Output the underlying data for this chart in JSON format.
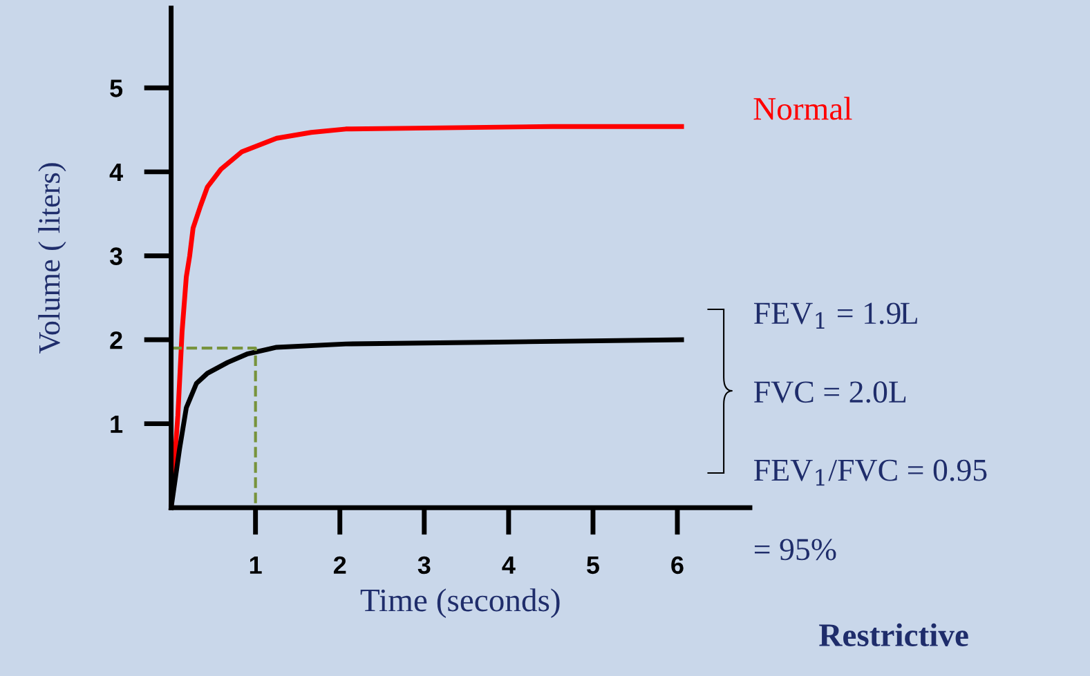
{
  "chart_data": {
    "type": "line",
    "title": "Restrictive",
    "xlabel": "Time (seconds)",
    "ylabel": "Volume ( liters)",
    "xlim": [
      0,
      6.86
    ],
    "ylim": [
      0,
      5.95
    ],
    "xticks": [
      1,
      2,
      3,
      4,
      5,
      6
    ],
    "yticks": [
      1,
      2,
      3,
      4,
      5
    ],
    "grid": false,
    "legend": false,
    "marker": "none",
    "series": [
      {
        "name": "Normal",
        "color": "#ff0000",
        "x": [
          0,
          0.08,
          0.13,
          0.18,
          0.22,
          0.26,
          0.35,
          0.43,
          0.59,
          0.84,
          1.25,
          1.66,
          2.07,
          2.89,
          4.52,
          6.05
        ],
        "values": [
          0,
          1.1,
          2.1,
          2.75,
          3.0,
          3.33,
          3.6,
          3.82,
          4.03,
          4.24,
          4.4,
          4.47,
          4.51,
          4.52,
          4.54,
          4.54
        ]
      },
      {
        "color": "#000000",
        "x": [
          0,
          0.1,
          0.18,
          0.3,
          0.43,
          0.67,
          0.9,
          1.25,
          2.07,
          3.7,
          6.05
        ],
        "values": [
          0,
          0.7,
          1.19,
          1.48,
          1.6,
          1.73,
          1.83,
          1.91,
          1.95,
          1.97,
          2.0
        ]
      },
      {
        "color": "#77933c",
        "line_style": "dashed",
        "x": [
          0,
          1,
          1
        ],
        "values": [
          1.9,
          1.9,
          0
        ]
      }
    ],
    "annotations": [
      "FEV$_{1}$ = 1.9L",
      "FVC = 2.0L",
      "FEV$_{1}$/FVC = 0.95",
      "= 95%"
    ]
  }
}
